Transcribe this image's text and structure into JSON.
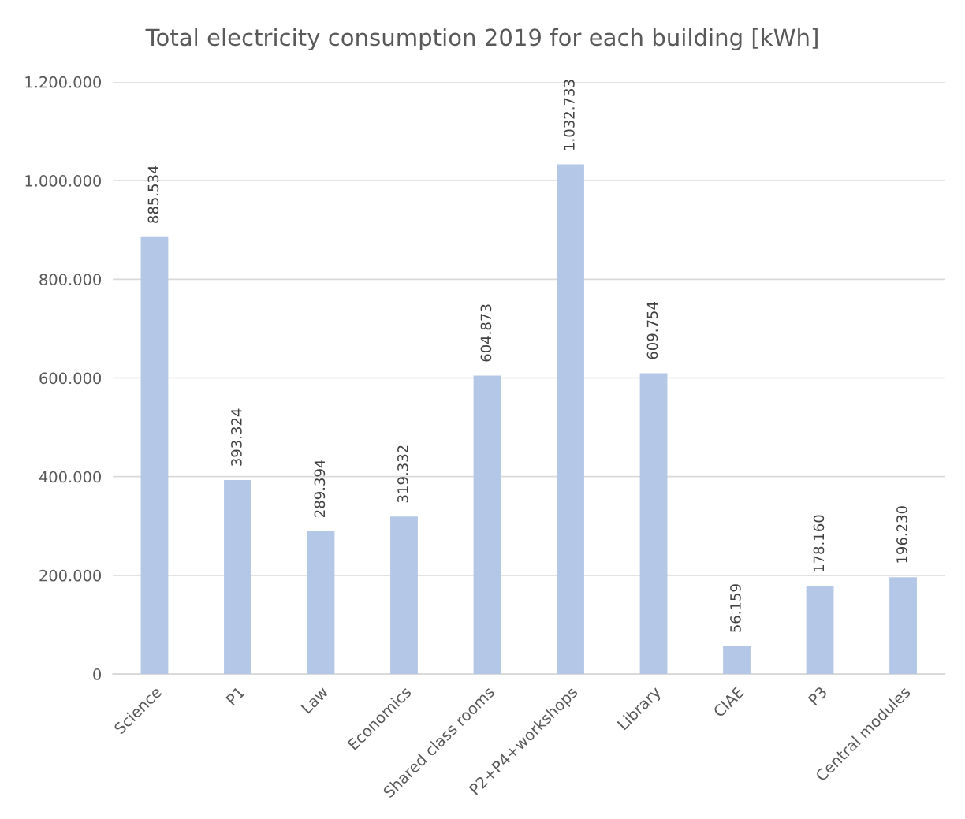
{
  "chart_data": {
    "type": "bar",
    "title": "Total electricity consumption 2019 for each building [kWh]",
    "categories": [
      "Science",
      "P1",
      "Law",
      "Economics",
      "Shared class rooms",
      "P2+P4+workshops",
      "Library",
      "CIAE",
      "P3",
      "Central modules"
    ],
    "values": [
      885534,
      393324,
      289394,
      319332,
      604873,
      1032733,
      609754,
      56159,
      178160,
      196230
    ],
    "value_labels": [
      "885.534",
      "393.324",
      "289.394",
      "319.332",
      "604.873",
      "1.032.733",
      "609.754",
      "56.159",
      "178.160",
      "196.230"
    ],
    "color": "#b4c7e7",
    "ylim": [
      0,
      1200000
    ],
    "yticks": [
      0,
      {
        "value": 200000,
        "label": "200.000"
      },
      {
        "value": 400000,
        "label": "400.000"
      },
      {
        "value": 600000,
        "label": "600.000"
      },
      {
        "value": 800000,
        "label": "800.000"
      },
      {
        "value": 1000000,
        "label": "1.000.000"
      },
      {
        "value": 1200000,
        "label": "1.200.000"
      }
    ],
    "grid": "y"
  }
}
